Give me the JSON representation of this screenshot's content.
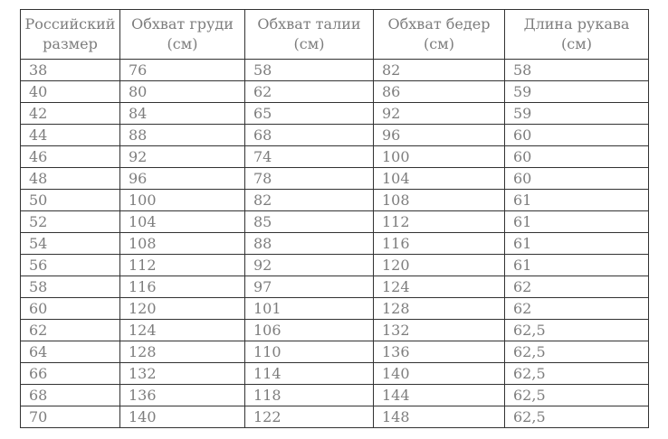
{
  "colors": {
    "background": "#ffffff",
    "text": "#7d7d7d",
    "border": "#323232"
  },
  "chart_data": {
    "type": "table",
    "columns": [
      "Российский размер",
      "Обхват груди (см)",
      "Обхват талии (см)",
      "Обхват бедер (см)",
      "Длина рукава (см)"
    ],
    "header_lines": [
      {
        "line1": "Российский",
        "line2": "размер"
      },
      {
        "line1": "Обхват груди",
        "line2": "(см)"
      },
      {
        "line1": "Обхват талии",
        "line2": "(см)"
      },
      {
        "line1": "Обхват бедер",
        "line2": "(см)"
      },
      {
        "line1": "Длина рукава",
        "line2": "(см)"
      }
    ],
    "rows": [
      [
        "38",
        "76",
        "58",
        "82",
        "58"
      ],
      [
        "40",
        "80",
        "62",
        "86",
        "59"
      ],
      [
        "42",
        "84",
        "65",
        "92",
        "59"
      ],
      [
        "44",
        "88",
        "68",
        "96",
        "60"
      ],
      [
        "46",
        "92",
        "74",
        "100",
        "60"
      ],
      [
        "48",
        "96",
        "78",
        "104",
        "60"
      ],
      [
        "50",
        "100",
        "82",
        "108",
        "61"
      ],
      [
        "52",
        "104",
        "85",
        "112",
        "61"
      ],
      [
        "54",
        "108",
        "88",
        "116",
        "61"
      ],
      [
        "56",
        "112",
        "92",
        "120",
        "61"
      ],
      [
        "58",
        "116",
        "97",
        "124",
        "62"
      ],
      [
        "60",
        "120",
        "101",
        "128",
        "62"
      ],
      [
        "62",
        "124",
        "106",
        "132",
        "62,5"
      ],
      [
        "64",
        "128",
        "110",
        "136",
        "62,5"
      ],
      [
        "66",
        "132",
        "114",
        "140",
        "62,5"
      ],
      [
        "68",
        "136",
        "118",
        "144",
        "62,5"
      ],
      [
        "70",
        "140",
        "122",
        "148",
        "62,5"
      ]
    ]
  }
}
